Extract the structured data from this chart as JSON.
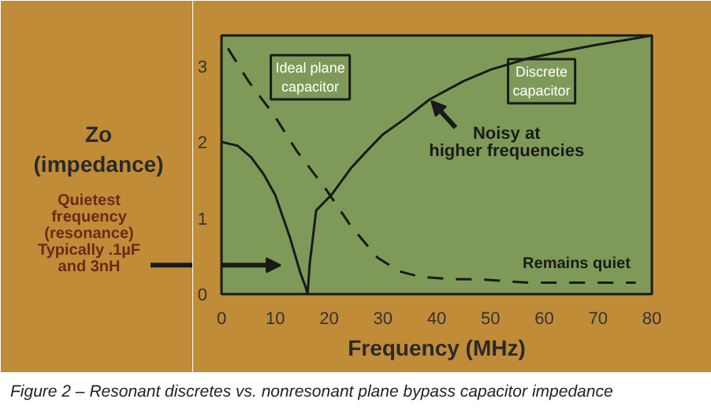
{
  "chart_data": {
    "type": "line",
    "xlabel": "Frequency (MHz)",
    "ylabel": "Zo\n(impedance)",
    "xlim": [
      0,
      80
    ],
    "ylim": [
      0,
      3.4
    ],
    "xticks": [
      0,
      10,
      20,
      30,
      40,
      50,
      60,
      70,
      80
    ],
    "yticks": [
      0,
      1,
      2,
      3
    ],
    "grid": false,
    "marker": "none",
    "series": [
      {
        "name": "Ideal plane capacitor",
        "color": "#1a1a1a",
        "line_style": "dashed",
        "x": [
          1.2,
          5,
          9.8,
          14,
          19.4,
          24,
          29,
          33,
          36.8,
          42,
          49,
          57,
          65,
          72,
          77
        ],
        "values": [
          3.23,
          2.8,
          2.35,
          1.88,
          1.38,
          0.9,
          0.48,
          0.3,
          0.23,
          0.2,
          0.19,
          0.15,
          0.15,
          0.15,
          0.15
        ]
      },
      {
        "name": "Discrete capacitor",
        "color": "#1a1a1a",
        "line_style": "solid",
        "x": [
          0,
          3,
          5.5,
          7.8,
          10,
          12.7,
          14.7,
          15.6,
          16,
          16.4,
          17.6,
          20.5,
          24,
          27,
          30,
          34,
          38.7,
          45,
          50,
          57,
          64,
          70,
          76,
          80
        ],
        "values": [
          2,
          1.95,
          1.8,
          1.58,
          1.3,
          0.75,
          0.27,
          0.1,
          0,
          0.4,
          1.1,
          1.31,
          1.65,
          1.88,
          2.1,
          2.3,
          2.56,
          2.8,
          2.95,
          3.1,
          3.2,
          3.28,
          3.35,
          3.4
        ]
      }
    ],
    "annotations": [
      {
        "text": "Noisy at\nhigher frequencies",
        "x": 39,
        "y": 2.54
      },
      {
        "text": "Remains quiet",
        "x": 66,
        "y": 0.17
      },
      "Quietest\nfrequency\n(resonance)\nTypically .1µF\nand 3nH",
      "Figure 2 – Resonant discretes vs. nonresonant plane bypass capacitor impedance"
    ]
  }
}
